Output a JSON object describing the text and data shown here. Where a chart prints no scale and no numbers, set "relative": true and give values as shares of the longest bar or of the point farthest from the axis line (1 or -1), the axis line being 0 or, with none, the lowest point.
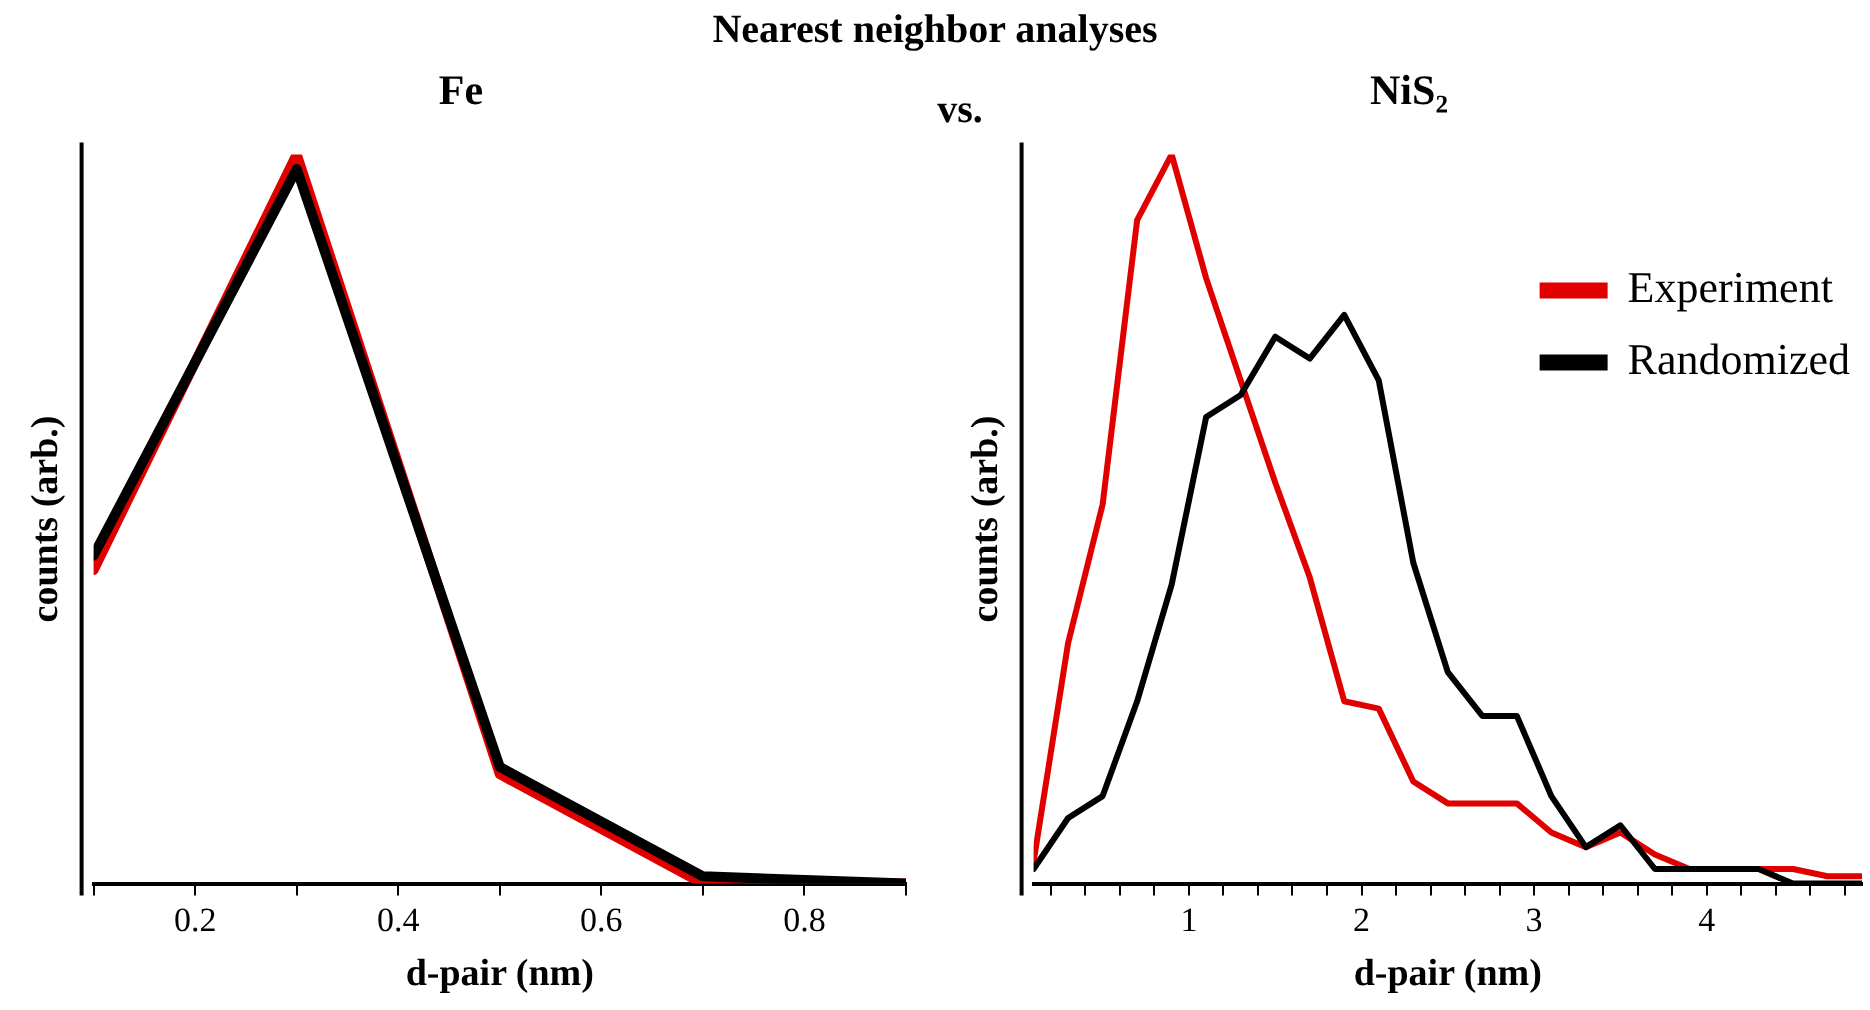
{
  "chart_data": [
    {
      "type": "line",
      "title": "Fe",
      "xlabel": "d-pair (nm)",
      "ylabel": "counts (arb.)",
      "relative": true,
      "grid": false,
      "legend": false,
      "marker": "none",
      "line_style": "solid",
      "annotations": [
        "Nearest neighbor analyses",
        "vs."
      ],
      "x": [
        0.1,
        0.3,
        0.5,
        0.7,
        0.9
      ],
      "xlim": [
        0.1,
        0.9
      ],
      "xticks": [
        {
          "value": 0.1,
          "label": null
        },
        0.2,
        {
          "value": 0.3,
          "label": null
        },
        0.4,
        {
          "value": 0.5,
          "label": null
        },
        0.6,
        {
          "value": 0.7,
          "label": null
        },
        0.8,
        {
          "value": 0.9,
          "label": null
        }
      ],
      "series": [
        {
          "color": "#e00000",
          "values": [
            0.43,
            1.0,
            0.15,
            0.0,
            0.0
          ]
        },
        {
          "color": "#000000",
          "values": [
            0.45,
            0.98,
            0.16,
            0.01,
            0.0
          ]
        }
      ]
    },
    {
      "type": "line",
      "title": "NiS₂",
      "xlabel": "d-pair (nm)",
      "ylabel": "counts (arb.)",
      "relative": true,
      "grid": false,
      "legend": "top right",
      "marker": "none",
      "line_style": "solid",
      "x": [
        0.1,
        0.3,
        0.5,
        0.7,
        0.9,
        1.1,
        1.3,
        1.5,
        1.7,
        1.9,
        2.1,
        2.3,
        2.5,
        2.7,
        2.9,
        3.1,
        3.3,
        3.5,
        3.7,
        3.9,
        4.1,
        4.3,
        4.5,
        4.7,
        4.9
      ],
      "xlim": [
        0.1,
        4.9
      ],
      "xticks": [
        {
          "value": 0.2,
          "label": null
        },
        {
          "value": 0.4,
          "label": null
        },
        {
          "value": 0.6,
          "label": null
        },
        {
          "value": 0.8,
          "label": null
        },
        1,
        {
          "value": 1.2,
          "label": null
        },
        {
          "value": 1.4,
          "label": null
        },
        {
          "value": 1.6,
          "label": null
        },
        {
          "value": 1.8,
          "label": null
        },
        2,
        {
          "value": 2.2,
          "label": null
        },
        {
          "value": 2.4,
          "label": null
        },
        {
          "value": 2.6,
          "label": null
        },
        {
          "value": 2.8,
          "label": null
        },
        3,
        {
          "value": 3.2,
          "label": null
        },
        {
          "value": 3.4,
          "label": null
        },
        {
          "value": 3.6,
          "label": null
        },
        {
          "value": 3.8,
          "label": null
        },
        4,
        {
          "value": 4.2,
          "label": null
        },
        {
          "value": 4.4,
          "label": null
        },
        {
          "value": 4.6,
          "label": null
        },
        {
          "value": 4.8,
          "label": null
        }
      ],
      "series": [
        {
          "name": "Experiment",
          "color": "#e00000",
          "values": [
            0.03,
            0.33,
            0.52,
            0.91,
            1.0,
            0.83,
            0.69,
            0.55,
            0.42,
            0.25,
            0.24,
            0.14,
            0.11,
            0.11,
            0.11,
            0.07,
            0.05,
            0.07,
            0.04,
            0.02,
            0.02,
            0.02,
            0.02,
            0.01,
            0.01
          ]
        },
        {
          "name": "Randomized",
          "color": "#000000",
          "values": [
            0.02,
            0.09,
            0.12,
            0.25,
            0.41,
            0.64,
            0.67,
            0.75,
            0.72,
            0.78,
            0.69,
            0.44,
            0.29,
            0.23,
            0.23,
            0.12,
            0.05,
            0.08,
            0.02,
            0.02,
            0.02,
            0.02,
            0.0,
            0.0,
            0.0
          ]
        }
      ]
    }
  ]
}
